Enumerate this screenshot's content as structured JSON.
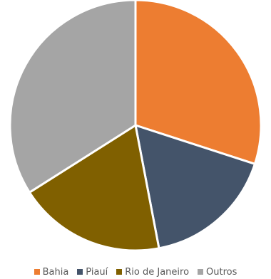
{
  "chart_data": {
    "type": "pie",
    "categories": [
      "Bahia",
      "Piauí",
      "Rio de Janeiro",
      "Outros"
    ],
    "values": [
      30,
      17,
      19,
      34
    ],
    "colors": [
      "#ED7D31",
      "#44546A",
      "#806000",
      "#A5A5A5"
    ],
    "start": "top, clockwise",
    "legend": "bottom"
  }
}
